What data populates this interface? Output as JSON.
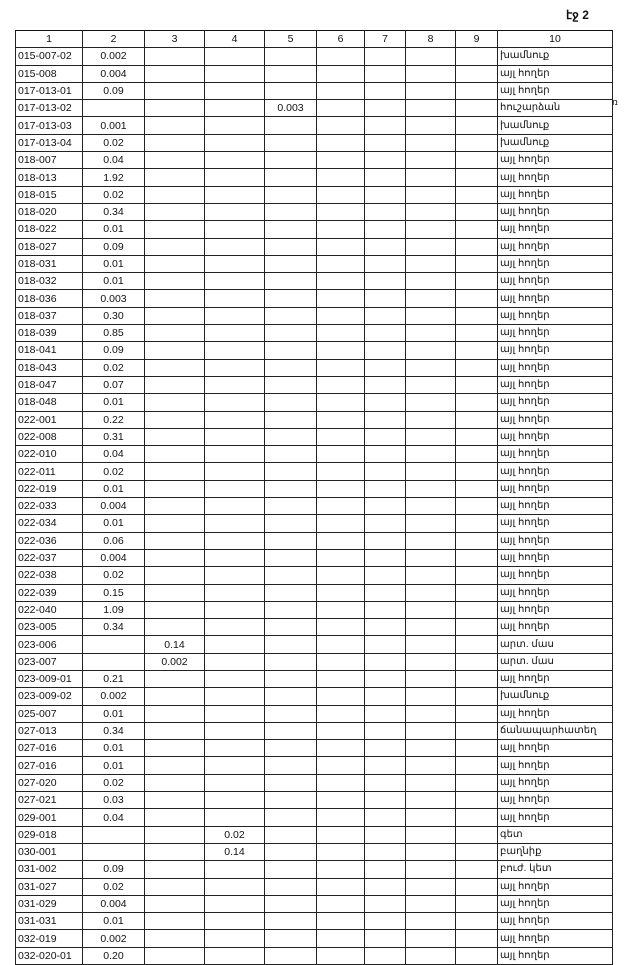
{
  "page_label": "էջ 2",
  "side_mark": "ռ",
  "headers": [
    "1",
    "2",
    "3",
    "4",
    "5",
    "6",
    "7",
    "8",
    "9",
    "10"
  ],
  "rows": [
    {
      "c1": "015-007-02",
      "c2": "0.002",
      "c10": "խամնուք"
    },
    {
      "c1": "015-008",
      "c2": "0.004",
      "c10": "այլ հողեր"
    },
    {
      "c1": "017-013-01",
      "c2": "0.09",
      "c10": "այլ հողեր"
    },
    {
      "c1": "017-013-02",
      "c5": "0.003",
      "c10": "հուշարձան"
    },
    {
      "c1": "017-013-03",
      "c2": "0.001",
      "c10": "խամնուք"
    },
    {
      "c1": "017-013-04",
      "c2": "0.02",
      "c10": "խամնուք"
    },
    {
      "c1": "018-007",
      "c2": "0.04",
      "c10": "այլ հողեր"
    },
    {
      "c1": "018-013",
      "c2": "1.92",
      "c10": "այլ հողեր"
    },
    {
      "c1": "018-015",
      "c2": "0.02",
      "c10": "այլ հողեր"
    },
    {
      "c1": "018-020",
      "c2": "0.34",
      "c10": "այլ հողեր"
    },
    {
      "c1": "018-022",
      "c2": "0.01",
      "c10": "այլ հողեր"
    },
    {
      "c1": "018-027",
      "c2": "0.09",
      "c10": "այլ հողեր"
    },
    {
      "c1": "018-031",
      "c2": "0.01",
      "c10": "այլ հողեր"
    },
    {
      "c1": "018-032",
      "c2": "0.01",
      "c10": "այլ հողեր"
    },
    {
      "c1": "018-036",
      "c2": "0.003",
      "c10": "այլ հողեր"
    },
    {
      "c1": "018-037",
      "c2": "0.30",
      "c10": "այլ հողեր"
    },
    {
      "c1": "018-039",
      "c2": "0.85",
      "c10": "այլ հողեր"
    },
    {
      "c1": "018-041",
      "c2": "0.09",
      "c10": "այլ հողեր"
    },
    {
      "c1": "018-043",
      "c2": "0.02",
      "c10": "այլ հողեր"
    },
    {
      "c1": "018-047",
      "c2": "0.07",
      "c10": "այլ հողեր"
    },
    {
      "c1": "018-048",
      "c2": "0.01",
      "c10": "այլ հողեր"
    },
    {
      "c1": "022-001",
      "c2": "0.22",
      "c10": "այլ հողեր"
    },
    {
      "c1": "022-008",
      "c2": "0.31",
      "c10": "այլ հողեր"
    },
    {
      "c1": "022-010",
      "c2": "0.04",
      "c10": "այլ հողեր"
    },
    {
      "c1": "022-011",
      "c2": "0.02",
      "c10": "այլ հողեր"
    },
    {
      "c1": "022-019",
      "c2": "0.01",
      "c10": "այլ հողեր"
    },
    {
      "c1": "022-033",
      "c2": "0.004",
      "c10": "այլ հողեր"
    },
    {
      "c1": "022-034",
      "c2": "0.01",
      "c10": "այլ հողեր"
    },
    {
      "c1": "022-036",
      "c2": "0.06",
      "c10": "այլ հողեր"
    },
    {
      "c1": "022-037",
      "c2": "0.004",
      "c10": "այլ հողեր"
    },
    {
      "c1": "022-038",
      "c2": "0.02",
      "c10": "այլ հողեր"
    },
    {
      "c1": "022-039",
      "c2": "0.15",
      "c10": "այլ հողեր"
    },
    {
      "c1": "022-040",
      "c2": "1.09",
      "c10": "այլ հողեր"
    },
    {
      "c1": "023-005",
      "c2": "0.34",
      "c10": "այլ հողեր"
    },
    {
      "c1": "023-006",
      "c3": "0.14",
      "c10": "արտ. մաս"
    },
    {
      "c1": "023-007",
      "c3": "0.002",
      "c10": "արտ. մաս"
    },
    {
      "c1": "023-009-01",
      "c2": "0.21",
      "c10": "այլ հողեր"
    },
    {
      "c1": "023-009-02",
      "c2": "0.002",
      "c10": "խամնուք"
    },
    {
      "c1": "025-007",
      "c2": "0.01",
      "c10": "այլ հողեր"
    },
    {
      "c1": "027-013",
      "c2": "0.34",
      "c10": "ճանապարհատեղ"
    },
    {
      "c1": "027-016",
      "c2": "0.01",
      "c10": "այլ հողեր"
    },
    {
      "c1": "027-016",
      "c2": "0.01",
      "c10": "այլ հողեր"
    },
    {
      "c1": "027-020",
      "c2": "0.02",
      "c10": "այլ հողեր"
    },
    {
      "c1": "027-021",
      "c2": "0.03",
      "c10": "այլ հողեր"
    },
    {
      "c1": "029-001",
      "c2": "0.04",
      "c10": "այլ հողեր"
    },
    {
      "c1": "029-018",
      "c4": "0.02",
      "c10": "գետ"
    },
    {
      "c1": "030-001",
      "c4": "0.14",
      "c10": "բաղնիք"
    },
    {
      "c1": "031-002",
      "c2": "0.09",
      "c10": "բուժ. կետ"
    },
    {
      "c1": "031-027",
      "c2": "0.02",
      "c10": "այլ հողեր"
    },
    {
      "c1": "031-029",
      "c2": "0.004",
      "c10": "այլ հողեր"
    },
    {
      "c1": "031-031",
      "c2": "0.01",
      "c10": "այլ հողեր"
    },
    {
      "c1": "032-019",
      "c2": "0.002",
      "c10": "այլ հողեր"
    },
    {
      "c1": "032-020-01",
      "c2": "0.20",
      "c10": "այլ հողեր"
    }
  ]
}
